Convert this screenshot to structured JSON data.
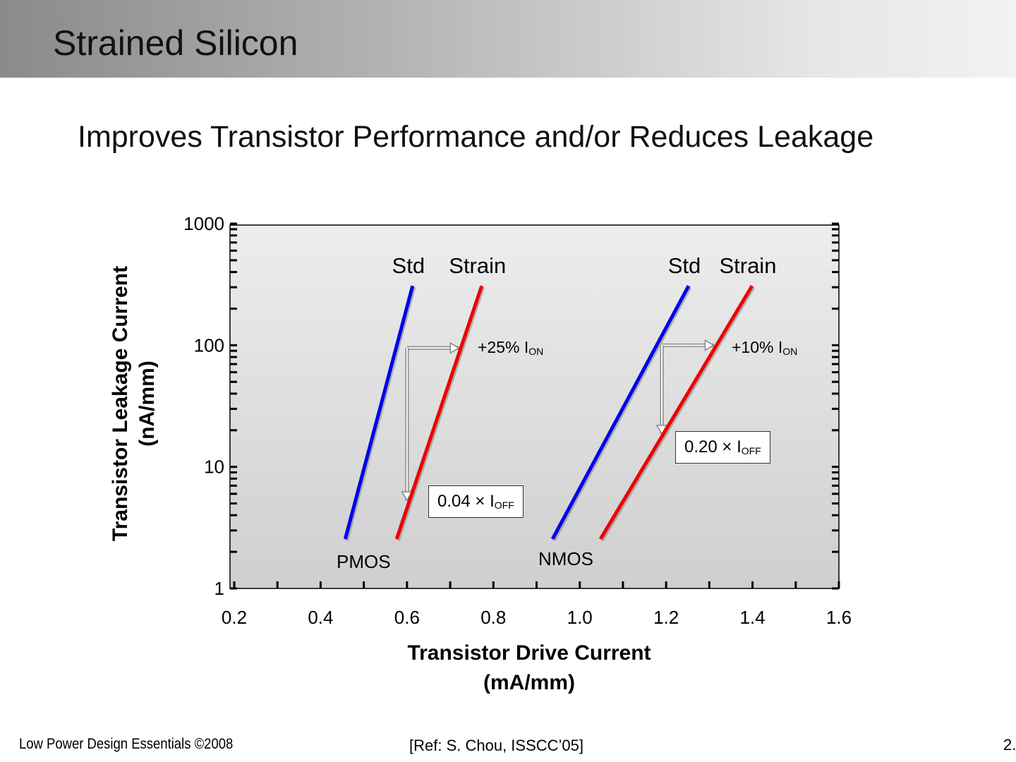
{
  "header": {
    "title": "Strained Silicon"
  },
  "subtitle": "Improves Transistor Performance and/or Reduces Leakage",
  "chart_data": {
    "type": "line",
    "xlabel_line1": "Transistor Drive Current",
    "xlabel_line2": "(mA/mm)",
    "ylabel_line1": "Transistor Leakage Current",
    "ylabel_line2": "(nA/mm)",
    "xlim": [
      0.2,
      1.6
    ],
    "ylim": [
      1,
      1000
    ],
    "yscale": "log",
    "x_ticks": [
      "0.2",
      "0.4",
      "0.6",
      "0.8",
      "1.0",
      "1.2",
      "1.4",
      "1.6"
    ],
    "x_tick_values": [
      0.2,
      0.4,
      0.6,
      0.8,
      1.0,
      1.2,
      1.4,
      1.6
    ],
    "y_ticks": [
      "1",
      "10",
      "100",
      "1000"
    ],
    "y_tick_values": [
      1,
      10,
      100,
      1000
    ],
    "series": [
      {
        "name": "PMOS Std",
        "label": "Std",
        "color": "#0000ee",
        "x": [
          0.457,
          0.613
        ],
        "y": [
          2.55,
          308
        ]
      },
      {
        "name": "PMOS Strain",
        "label": "Strain",
        "color": "#ee0000",
        "x": [
          0.576,
          0.773
        ],
        "y": [
          2.55,
          308
        ]
      },
      {
        "name": "NMOS Std",
        "label": "Std",
        "color": "#0000ee",
        "x": [
          0.937,
          1.252
        ],
        "y": [
          2.55,
          308
        ]
      },
      {
        "name": "NMOS Strain",
        "label": "Strain",
        "color": "#ee0000",
        "x": [
          1.048,
          1.399
        ],
        "y": [
          2.55,
          308
        ]
      }
    ],
    "group_labels": [
      "PMOS",
      "NMOS"
    ],
    "annotations": {
      "pmos_ion": {
        "text": "+25% I",
        "sub": "ON"
      },
      "nmos_ion": {
        "text": "+10% I",
        "sub": "ON"
      },
      "pmos_ioff": {
        "text": "0.04 × I",
        "sub": "OFF"
      },
      "nmos_ioff": {
        "text": "0.20 × I",
        "sub": "OFF"
      }
    },
    "arrows": [
      {
        "from": [
          0.6,
          95
        ],
        "to": [
          0.72,
          95
        ]
      },
      {
        "from": [
          0.6,
          95
        ],
        "to": [
          0.6,
          5.3
        ]
      },
      {
        "from": [
          1.19,
          100
        ],
        "to": [
          1.31,
          100
        ]
      },
      {
        "from": [
          1.19,
          100
        ],
        "to": [
          1.19,
          18.7
        ]
      }
    ]
  },
  "footer": {
    "left": "Low Power Design Essentials ©2008",
    "center": "[Ref: S. Chou, ISSCC’05]",
    "page": "2."
  }
}
